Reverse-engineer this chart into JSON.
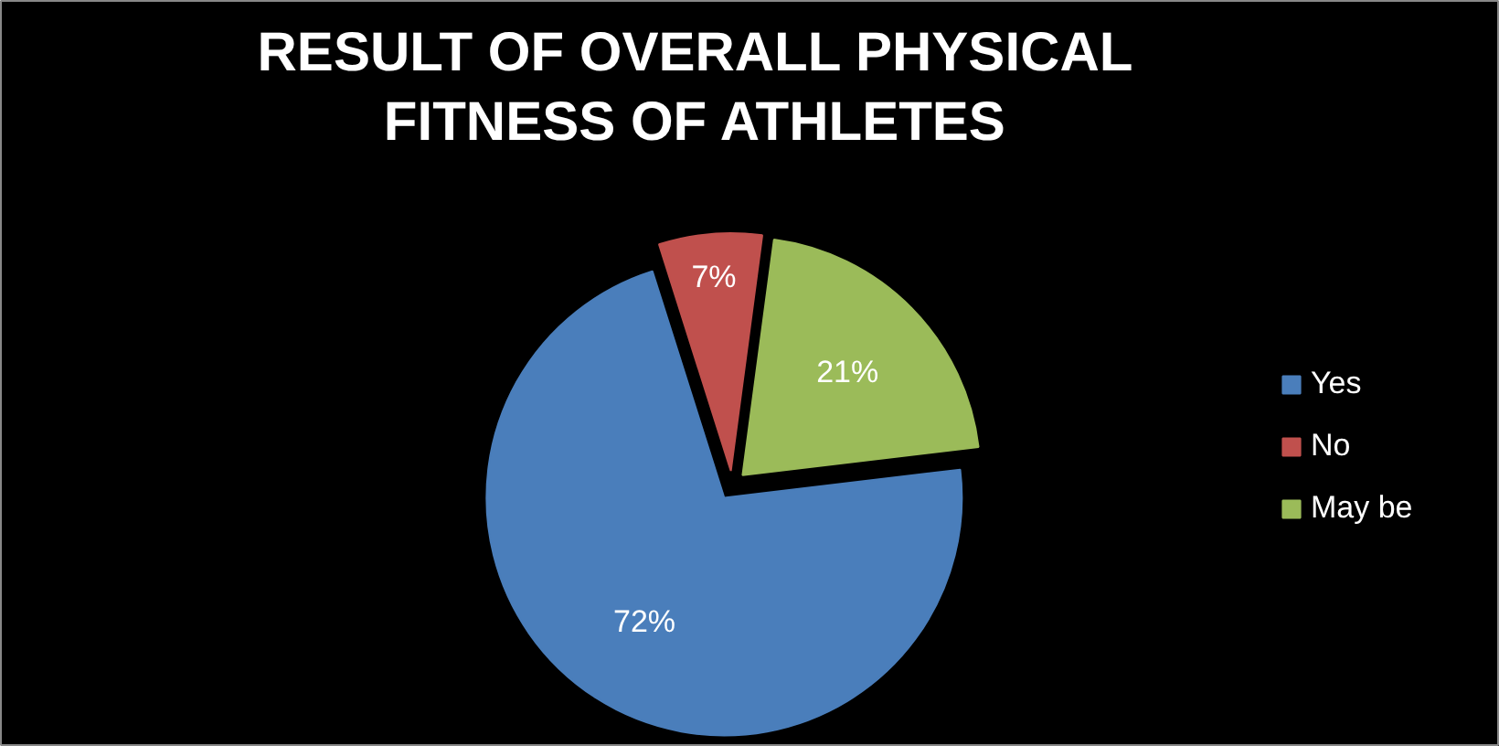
{
  "chart_data": {
    "type": "pie",
    "title": "RESULT OF OVERALL PHYSICAL FITNESS OF ATHLETES",
    "categories": [
      "Yes",
      "No",
      "May be"
    ],
    "values": [
      72,
      7,
      21
    ],
    "colors": [
      "#4a7ebb",
      "#c0504d",
      "#9bbb59"
    ],
    "value_labels": [
      "72%",
      "7%",
      "21%"
    ],
    "legend": "right"
  }
}
